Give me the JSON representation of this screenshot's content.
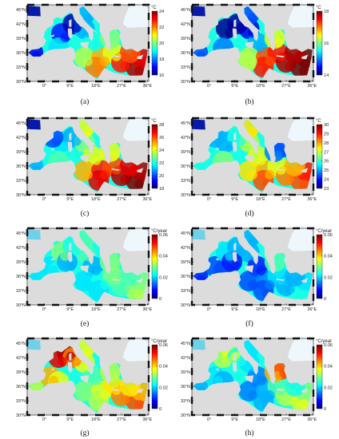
{
  "figure": {
    "axes": {
      "lat_ticks": [
        "30°N",
        "33°N",
        "36°N",
        "39°N",
        "42°N",
        "45°N"
      ],
      "lon_ticks": [
        "0°",
        "9°E",
        "18°E",
        "27°E",
        "36°E"
      ]
    },
    "panels": [
      {
        "id": "a",
        "caption": "(a)",
        "unit": "°C",
        "ticks": [
          "16",
          "18",
          "20",
          "22",
          "24"
        ],
        "vmin": 16,
        "vmax": 24
      },
      {
        "id": "b",
        "caption": "(b)",
        "unit": "°C",
        "ticks": [
          "14",
          "16",
          "18"
        ],
        "vmin": 14,
        "vmax": 18
      },
      {
        "id": "c",
        "caption": "(c)",
        "unit": "°C",
        "ticks": [
          "18",
          "20",
          "22",
          "24",
          "26",
          "28"
        ],
        "vmin": 18,
        "vmax": 28
      },
      {
        "id": "d",
        "caption": "(d)",
        "unit": "°C",
        "ticks": [
          "23",
          "24",
          "25",
          "26",
          "27",
          "28",
          "29",
          "30"
        ],
        "vmin": 23,
        "vmax": 30
      },
      {
        "id": "e",
        "caption": "(e)",
        "unit": "°C/year",
        "ticks": [
          "0",
          "0.02",
          "0.04",
          "0.06"
        ],
        "vmin": 0,
        "vmax": 0.06
      },
      {
        "id": "f",
        "caption": "(f)",
        "unit": "°C/year",
        "ticks": [
          "0",
          "0.02",
          "0.04",
          "0.06"
        ],
        "vmin": 0,
        "vmax": 0.06
      },
      {
        "id": "g",
        "caption": "(g)",
        "unit": "°C/year",
        "ticks": [
          "0",
          "0.02",
          "0.04",
          "0.06"
        ],
        "vmin": 0,
        "vmax": 0.06
      },
      {
        "id": "h",
        "caption": "(h)",
        "unit": "°C/year",
        "ticks": [
          "0",
          "0.02",
          "0.04",
          "0.06"
        ],
        "vmin": 0,
        "vmax": 0.06
      }
    ],
    "colors": {
      "land": "#dcdcdc",
      "black_sea": "#eef7fc",
      "frame": "#111111"
    }
  }
}
